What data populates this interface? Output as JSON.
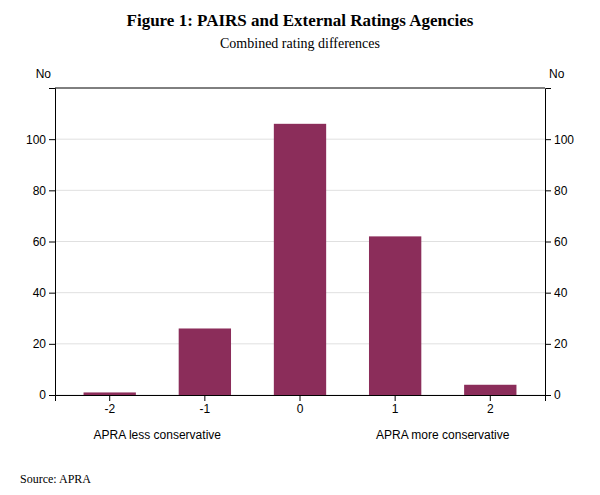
{
  "chart_data": {
    "type": "bar",
    "title": "Figure 1: PAIRS and External Ratings Agencies",
    "subtitle": "Combined rating differences",
    "categories": [
      -2,
      -1,
      0,
      1,
      2
    ],
    "values": [
      1,
      26,
      106,
      62,
      4
    ],
    "color": "#8B2D5A",
    "ylim": [
      0,
      120
    ],
    "yticks": [
      0,
      20,
      40,
      60,
      80,
      100
    ],
    "ylabel": "No",
    "y2lim": [
      0,
      120
    ],
    "y2ticks": [
      0,
      20,
      40,
      60,
      80,
      100
    ],
    "y2label": "No",
    "annotations": [
      "APRA less conservative",
      "APRA more conservative"
    ],
    "source": "Source: APRA",
    "grid": true
  }
}
